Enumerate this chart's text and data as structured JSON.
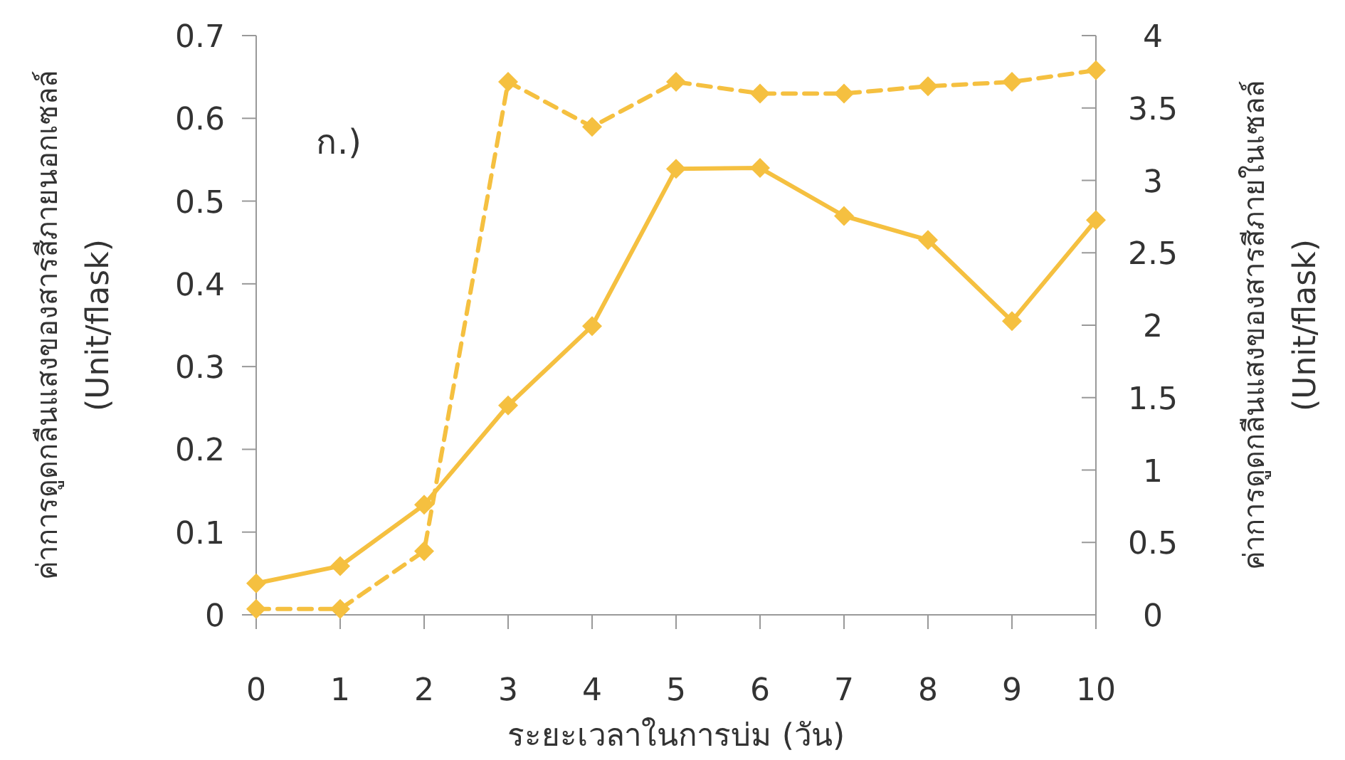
{
  "chart_data": {
    "type": "line",
    "xlabel": "ระยะเวลาในการบ่ม (วัน)",
    "ylabel": "ค่าการดูดกลืนแสงของสารสีภายนอกเซลล์ (Unit/flask)",
    "y2label": "ค่าการดูดกลืนแสงของสารสีภายในเซลล์ (Unit/flask)",
    "annotations": [
      "ก.)"
    ],
    "x": [
      0,
      1,
      2,
      3,
      4,
      5,
      6,
      7,
      8,
      9,
      10
    ],
    "xlim": [
      0,
      10
    ],
    "xticks": [
      0,
      1,
      2,
      3,
      4,
      5,
      6,
      7,
      8,
      9,
      10
    ],
    "ylim": [
      0,
      0.7
    ],
    "yticks": [
      0,
      0.1,
      0.2,
      0.3,
      0.4,
      0.5,
      0.6,
      0.7
    ],
    "y2lim": [
      0,
      4
    ],
    "y2ticks": [
      0,
      0.5,
      1,
      1.5,
      2,
      2.5,
      3,
      3.5,
      4
    ],
    "marker": "diamond",
    "series": [
      {
        "color": "#f5c040",
        "line_style": "solid",
        "values": [
          0.038,
          0.059,
          0.133,
          0.253,
          0.349,
          0.539,
          0.54,
          0.482,
          0.453,
          0.355,
          0.477
        ]
      },
      {
        "color": "#f5c040",
        "line_style": "dashed",
        "axis": "y2",
        "values": [
          0.04,
          0.04,
          0.44,
          3.68,
          3.37,
          3.68,
          3.6,
          3.6,
          3.65,
          3.68,
          3.76
        ]
      }
    ]
  }
}
